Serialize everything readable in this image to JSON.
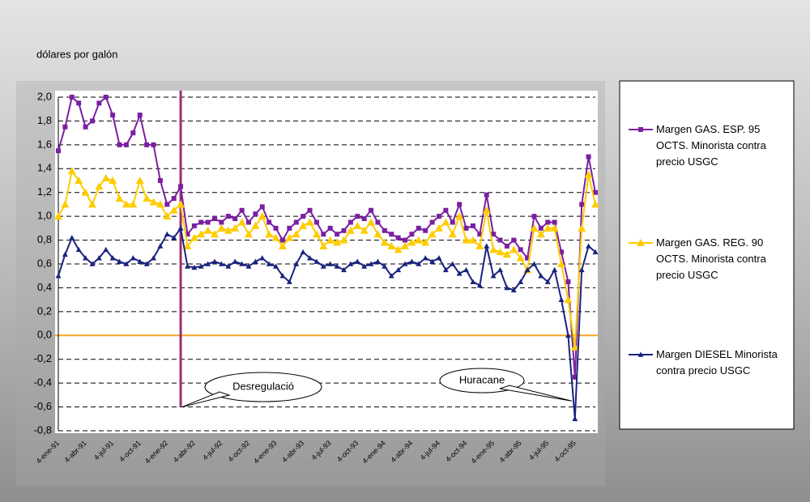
{
  "chart_data": {
    "type": "line",
    "title": "dólares por galón",
    "categories": [
      "4-ene-91",
      null,
      null,
      null,
      "4-abr-91",
      null,
      null,
      null,
      "4-jul-91",
      null,
      null,
      null,
      "4-oct-91",
      null,
      null,
      null,
      "4-ene-92",
      null,
      null,
      null,
      "4-abr-92",
      null,
      null,
      null,
      "4-jul-92",
      null,
      null,
      null,
      "4-oct-92",
      null,
      null,
      null,
      "4-ene-93",
      null,
      null,
      null,
      "4-abr-93",
      null,
      null,
      null,
      "4-jul-93",
      null,
      null,
      null,
      "4-oct-93",
      null,
      null,
      null,
      "4-ene-94",
      null,
      null,
      null,
      "4-abr-94",
      null,
      null,
      null,
      "4-jul-94",
      null,
      null,
      null,
      "4-oct-94",
      null,
      null,
      null,
      "4-ene-95",
      null,
      null,
      null,
      "4-abr-95",
      null,
      null,
      null,
      "4-jul-95",
      null,
      null,
      null,
      "4-oct-95",
      null,
      null,
      null
    ],
    "series": [
      {
        "name": "Margen GAS. ESP. 95 OCTS. Minorista contra precio USGC",
        "color": "#7b1fa2",
        "marker": "square",
        "values": [
          1.55,
          1.75,
          2.0,
          1.95,
          1.75,
          1.8,
          1.95,
          2.0,
          1.85,
          1.6,
          1.6,
          1.7,
          1.85,
          1.6,
          1.6,
          1.3,
          1.1,
          1.15,
          1.25,
          0.85,
          0.92,
          0.95,
          0.95,
          0.98,
          0.95,
          1.0,
          0.98,
          1.05,
          0.95,
          1.02,
          1.08,
          0.95,
          0.9,
          0.8,
          0.9,
          0.95,
          1.0,
          1.05,
          0.95,
          0.85,
          0.9,
          0.85,
          0.88,
          0.95,
          1.0,
          0.98,
          1.05,
          0.95,
          0.88,
          0.85,
          0.82,
          0.8,
          0.85,
          0.9,
          0.88,
          0.95,
          1.0,
          1.05,
          0.95,
          1.1,
          0.9,
          0.92,
          0.85,
          1.18,
          0.85,
          0.8,
          0.75,
          0.8,
          0.72,
          0.65,
          1.0,
          0.9,
          0.95,
          0.95,
          0.7,
          0.45,
          -0.35,
          1.1,
          1.5,
          1.2
        ]
      },
      {
        "name": "Margen GAS. REG. 90 OCTS. Minorista contra precio USGC",
        "color": "#ffcc00",
        "marker": "triangle",
        "values": [
          1.0,
          1.1,
          1.38,
          1.3,
          1.2,
          1.1,
          1.25,
          1.32,
          1.3,
          1.15,
          1.1,
          1.1,
          1.3,
          1.15,
          1.12,
          1.1,
          1.0,
          1.05,
          1.1,
          0.75,
          0.82,
          0.85,
          0.88,
          0.85,
          0.9,
          0.88,
          0.9,
          0.95,
          0.85,
          0.92,
          1.0,
          0.85,
          0.82,
          0.75,
          0.82,
          0.85,
          0.92,
          0.95,
          0.85,
          0.75,
          0.8,
          0.78,
          0.8,
          0.88,
          0.92,
          0.88,
          0.95,
          0.85,
          0.78,
          0.75,
          0.72,
          0.75,
          0.78,
          0.8,
          0.78,
          0.85,
          0.9,
          0.95,
          0.85,
          1.0,
          0.8,
          0.8,
          0.75,
          1.05,
          0.72,
          0.7,
          0.68,
          0.72,
          0.65,
          0.55,
          0.9,
          0.85,
          0.9,
          0.9,
          0.6,
          0.3,
          -0.1,
          0.9,
          1.35,
          1.1
        ]
      },
      {
        "name": "Margen DIESEL Minorista contra precio USGC",
        "color": "#1a237e",
        "marker": "small-triangle",
        "values": [
          0.5,
          0.68,
          0.82,
          0.72,
          0.65,
          0.6,
          0.65,
          0.72,
          0.65,
          0.62,
          0.6,
          0.65,
          0.62,
          0.6,
          0.65,
          0.75,
          0.85,
          0.82,
          0.9,
          0.58,
          0.57,
          0.58,
          0.6,
          0.62,
          0.6,
          0.58,
          0.62,
          0.6,
          0.58,
          0.62,
          0.65,
          0.6,
          0.58,
          0.5,
          0.45,
          0.6,
          0.7,
          0.65,
          0.62,
          0.58,
          0.6,
          0.58,
          0.55,
          0.6,
          0.62,
          0.58,
          0.6,
          0.62,
          0.58,
          0.5,
          0.55,
          0.6,
          0.62,
          0.6,
          0.65,
          0.62,
          0.65,
          0.55,
          0.6,
          0.52,
          0.55,
          0.45,
          0.42,
          0.75,
          0.5,
          0.55,
          0.4,
          0.38,
          0.45,
          0.55,
          0.6,
          0.5,
          0.45,
          0.55,
          0.3,
          0.0,
          -0.7,
          0.55,
          0.75,
          0.7
        ]
      }
    ],
    "ylim": [
      -0.8,
      2.0
    ],
    "yticks": [
      {
        "value": -0.8,
        "label": "-0,8"
      },
      {
        "value": -0.6,
        "label": "-0,6"
      },
      {
        "value": -0.4,
        "label": "-0,4"
      },
      {
        "value": -0.2,
        "label": "-0,2"
      },
      {
        "value": 0,
        "label": "0,0"
      },
      {
        "value": 0.2,
        "label": "0,2"
      },
      {
        "value": 0.4,
        "label": "0,4"
      },
      {
        "value": 0.6,
        "label": "0,6"
      },
      {
        "value": 0.8,
        "label": "0,8"
      },
      {
        "value": 1,
        "label": "1,0"
      },
      {
        "value": 1.2,
        "label": "1,2"
      },
      {
        "value": 1.4,
        "label": "1,4"
      },
      {
        "value": 1.6,
        "label": "1,6"
      },
      {
        "value": 1.8,
        "label": "1,8"
      },
      {
        "value": 2,
        "label": "2,0"
      }
    ],
    "grid": true,
    "zero_line_color": "#f5a623",
    "annotations": [
      {
        "text": "Desregulació",
        "x": 18
      },
      {
        "text": "Huracane",
        "x": 76
      }
    ]
  }
}
